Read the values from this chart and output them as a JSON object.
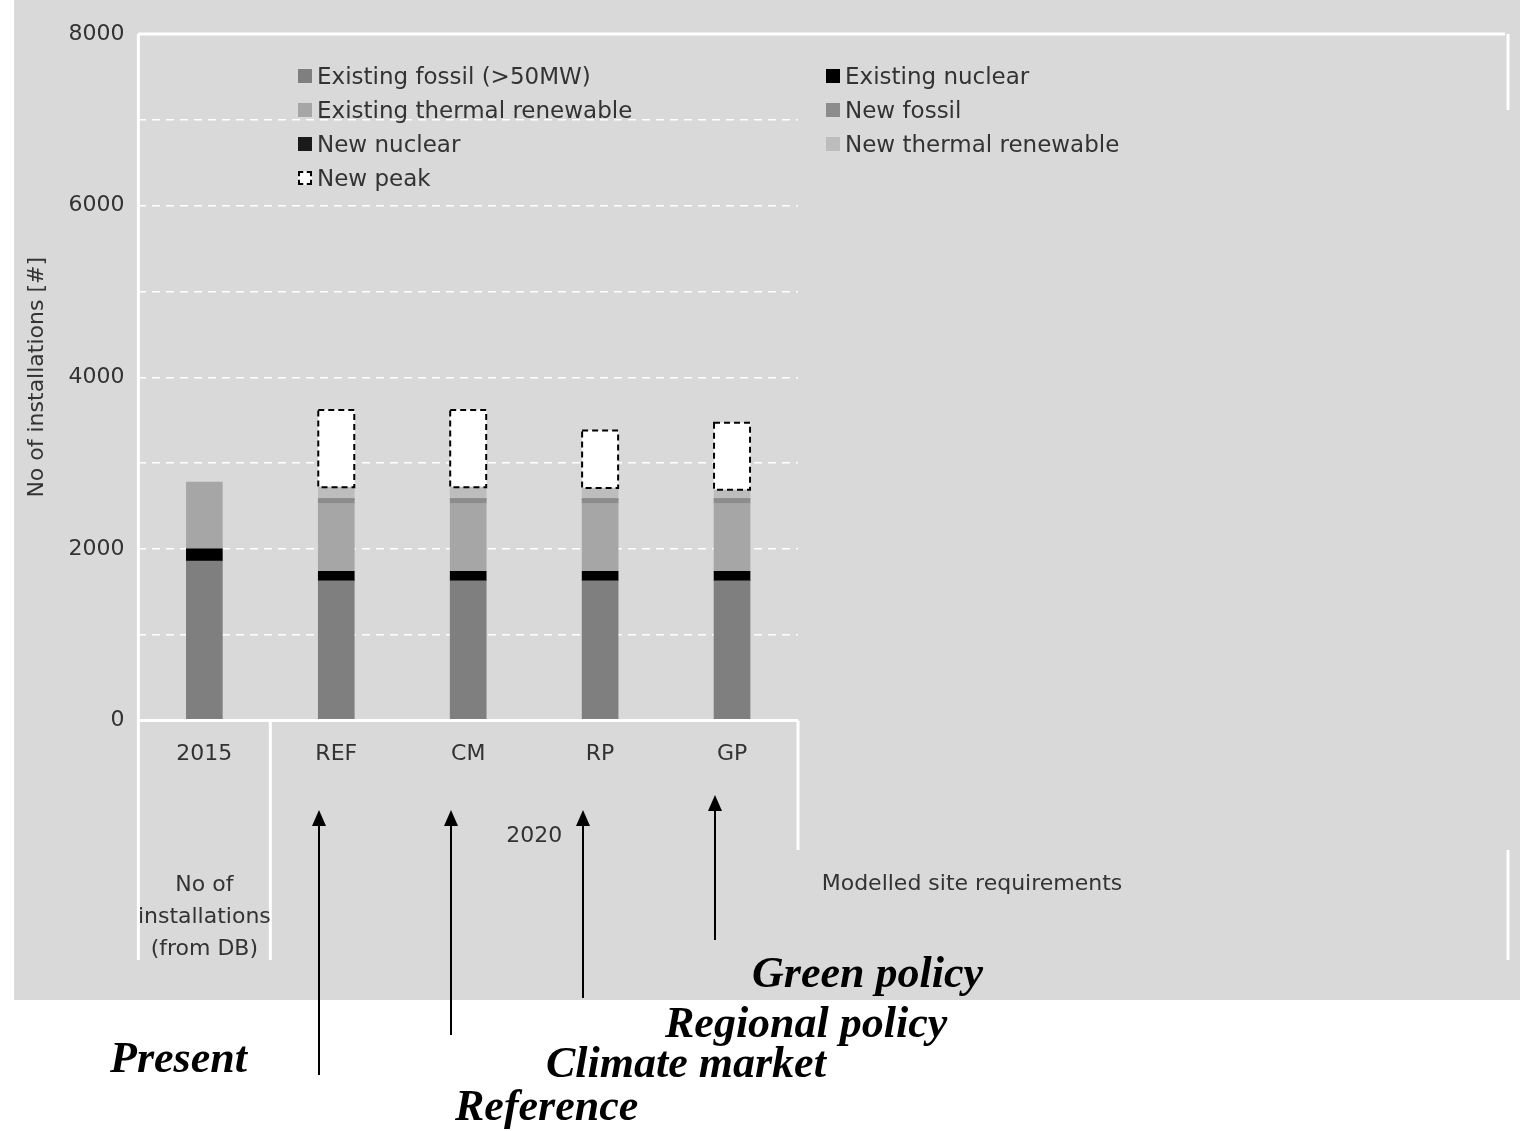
{
  "chart_data": {
    "type": "bar",
    "stacked": true,
    "ylabel": "No of installations [#]",
    "categories": [
      "2015",
      "REF",
      "CM",
      "RP",
      "GP"
    ],
    "ylim": [
      0,
      8000
    ],
    "yticks": [
      0,
      {
        "value": 1000,
        "label": null
      },
      2000,
      {
        "value": 3000,
        "label": null
      },
      4000,
      {
        "value": 5000,
        "label": null
      },
      6000,
      {
        "value": 7000,
        "label": null
      },
      8000
    ],
    "grid": "y",
    "legend": "top",
    "series": [
      {
        "name": "Existing fossil (>50MW)",
        "color": "#7f7f7f",
        "values": [
          1860,
          1630,
          1630,
          1630,
          1630
        ]
      },
      {
        "name": "Existing nuclear",
        "color": "#000000",
        "values": [
          140,
          110,
          110,
          110,
          110
        ]
      },
      {
        "name": "Existing thermal renewable",
        "color": "#a6a6a6",
        "values": [
          780,
          790,
          790,
          790,
          790
        ]
      },
      {
        "name": "New fossil",
        "color": "#8c8c8c",
        "values": [
          null,
          50,
          50,
          50,
          50
        ]
      },
      {
        "name": "New nuclear",
        "color": "#1a1a1a",
        "values": [
          null,
          0,
          0,
          0,
          0
        ]
      },
      {
        "name": "New thermal renewable",
        "color": "#bdbdbd",
        "values": [
          null,
          140,
          140,
          130,
          110
        ]
      },
      {
        "name": "New peak",
        "color": "#ffffff",
        "line_style": "dashed",
        "values": [
          null,
          900,
          900,
          670,
          780
        ]
      }
    ],
    "annotations": [
      "2020",
      "No of installations (from DB)",
      "Modelled site requirements",
      "Present",
      "Reference",
      "Climate market",
      "Regional policy",
      "Green policy"
    ]
  }
}
